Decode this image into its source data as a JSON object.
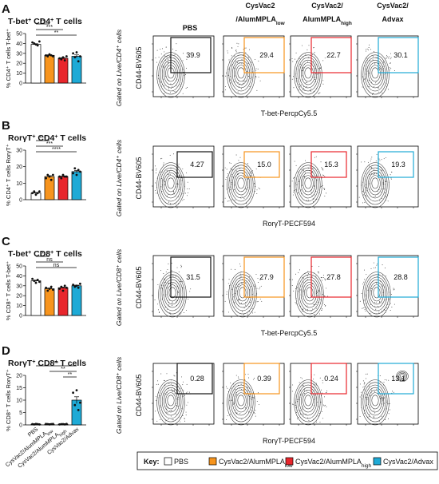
{
  "colors": {
    "PBS": "#ffffff",
    "AlumLow": "#f7941d",
    "AlumHigh": "#e8262c",
    "Advax": "#1eaad6"
  },
  "groups": [
    "PBS",
    "CysVac2/AlumMPLA_low",
    "CysVac2/AlumMPLA_high",
    "CysVac2/Advax"
  ],
  "bar_xlabels": [
    "PBS",
    "CysVac2/AlumMPLA",
    "CysVac2/AlumMPLA",
    "CysVac2/Advax"
  ],
  "bar_xlabel_subs": [
    "",
    "low",
    "high",
    ""
  ],
  "col_headers": [
    {
      "l1": "PBS",
      "l2": "",
      "sub": ""
    },
    {
      "l1": "CysVac2",
      "l2": "/AlumMPLA",
      "sub": "low"
    },
    {
      "l1": "CysVac2/",
      "l2": "AlumMPLA",
      "sub": "high"
    },
    {
      "l1": "CysVac2/",
      "l2": "Advax",
      "sub": ""
    }
  ],
  "chart_data": [
    {
      "type": "bar",
      "letter": "A",
      "title_main": "T-bet",
      "title_sup": "+",
      "title_rest": " CD4",
      "title_sup2": "+",
      "title_end": " T cells",
      "ylabel": "% CD4⁺ T cells T-bet⁺",
      "ylim": [
        0,
        50
      ],
      "yticks": [
        0,
        10,
        20,
        30,
        40,
        50
      ],
      "values": [
        39,
        28,
        25,
        27
      ],
      "points": [
        [
          41,
          40,
          39,
          38,
          42
        ],
        [
          28,
          27,
          29,
          28,
          27
        ],
        [
          25,
          24,
          26,
          23,
          27
        ],
        [
          30,
          26,
          31,
          22,
          27
        ]
      ],
      "significance": [
        {
          "from": 0,
          "to": 1,
          "label": "**"
        },
        {
          "from": 0,
          "to": 2,
          "label": "***"
        },
        {
          "from": 0,
          "to": 3,
          "label": "**"
        }
      ],
      "flow_gate": "Gated on Live/CD4⁺ cells",
      "flow_y": "CD44-BV605",
      "flow_x": "T-bet-PercpCy5.5",
      "flow_pct": [
        "39.9",
        "29.4",
        "22.7",
        "30.1"
      ]
    },
    {
      "type": "bar",
      "letter": "B",
      "title_main": "RorγT",
      "title_sup": "+",
      "title_rest": " CD4",
      "title_sup2": "+",
      "title_end": " T cells",
      "ylabel": "% CD4⁺ T cells RorγT⁺",
      "ylim": [
        0,
        30
      ],
      "yticks": [
        0,
        10,
        20,
        30
      ],
      "values": [
        4,
        14,
        14,
        17
      ],
      "points": [
        [
          4,
          5,
          3,
          4,
          5
        ],
        [
          13,
          15,
          14,
          12,
          15
        ],
        [
          14,
          13,
          15,
          14,
          14
        ],
        [
          16,
          19,
          15,
          18,
          17
        ]
      ],
      "significance": [
        {
          "from": 0,
          "to": 1,
          "label": "***"
        },
        {
          "from": 0,
          "to": 2,
          "label": "***"
        },
        {
          "from": 0,
          "to": 3,
          "label": "****"
        }
      ],
      "flow_gate": "Gated on Live/CD4⁺ cells",
      "flow_y": "CD44-BV605",
      "flow_x": "RorγT-PECF594",
      "flow_pct": [
        "4.27",
        "15.0",
        "15.3",
        "19.3"
      ]
    },
    {
      "type": "bar",
      "letter": "C",
      "title_main": "T-bet",
      "title_sup": "+",
      "title_rest": " CD8",
      "title_sup2": "+",
      "title_end": " T cells",
      "ylabel": "% CD8⁺ T cells T-bet⁺",
      "ylim": [
        0,
        50
      ],
      "yticks": [
        0,
        10,
        20,
        30,
        40,
        50
      ],
      "values": [
        35,
        27,
        28,
        30
      ],
      "points": [
        [
          37,
          35,
          33,
          36,
          34
        ],
        [
          28,
          25,
          27,
          29,
          26
        ],
        [
          27,
          29,
          25,
          30,
          28
        ],
        [
          31,
          29,
          30,
          28,
          32
        ]
      ],
      "significance": [
        {
          "from": 0,
          "to": 1,
          "label": "*"
        },
        {
          "from": 0,
          "to": 2,
          "label": "ns"
        },
        {
          "from": 0,
          "to": 3,
          "label": "ns"
        }
      ],
      "flow_gate": "Gated on Live/CD8⁺ cells",
      "flow_y": "CD44-BV605",
      "flow_x": "T-bet-PercpCy5.5",
      "flow_pct": [
        "31.5",
        "27.9",
        "27.8",
        "28.8"
      ]
    },
    {
      "type": "bar",
      "letter": "D",
      "title_main": "RorγT",
      "title_sup": "+",
      "title_rest": " CD8",
      "title_sup2": "+",
      "title_end": " T cells",
      "ylabel": "% CD8⁺ T cells RorγT⁺",
      "ylim": [
        0,
        20
      ],
      "yticks": [
        0,
        5,
        10,
        15,
        20
      ],
      "values": [
        0.3,
        0.3,
        0.3,
        10
      ],
      "points": [
        [
          0.3,
          0.2,
          0.4,
          0.3,
          0.2
        ],
        [
          0.4,
          0.3,
          0.2,
          0.3,
          0.4
        ],
        [
          0.2,
          0.3,
          0.3,
          0.2,
          0.4
        ],
        [
          13,
          8,
          14,
          6,
          9
        ]
      ],
      "significance": [
        {
          "from": 0,
          "to": 3,
          "label": "**"
        },
        {
          "from": 1,
          "to": 3,
          "label": "**"
        },
        {
          "from": 2,
          "to": 3,
          "label": "**"
        }
      ],
      "flow_gate": "Gated on Live/CD8⁺ cells",
      "flow_y": "CD44-BV605",
      "flow_x": "RorγT-PECF594",
      "flow_pct": [
        "0.28",
        "0.39",
        "0.24",
        "13.1"
      ]
    }
  ],
  "key": {
    "label": "Key:",
    "items": [
      {
        "text": "PBS",
        "sub": ""
      },
      {
        "text": "CysVac2/AlumMPLA",
        "sub": "low"
      },
      {
        "text": "CysVac2/AlumMPLA",
        "sub": "high"
      },
      {
        "text": "CysVac2/Advax",
        "sub": ""
      }
    ]
  }
}
